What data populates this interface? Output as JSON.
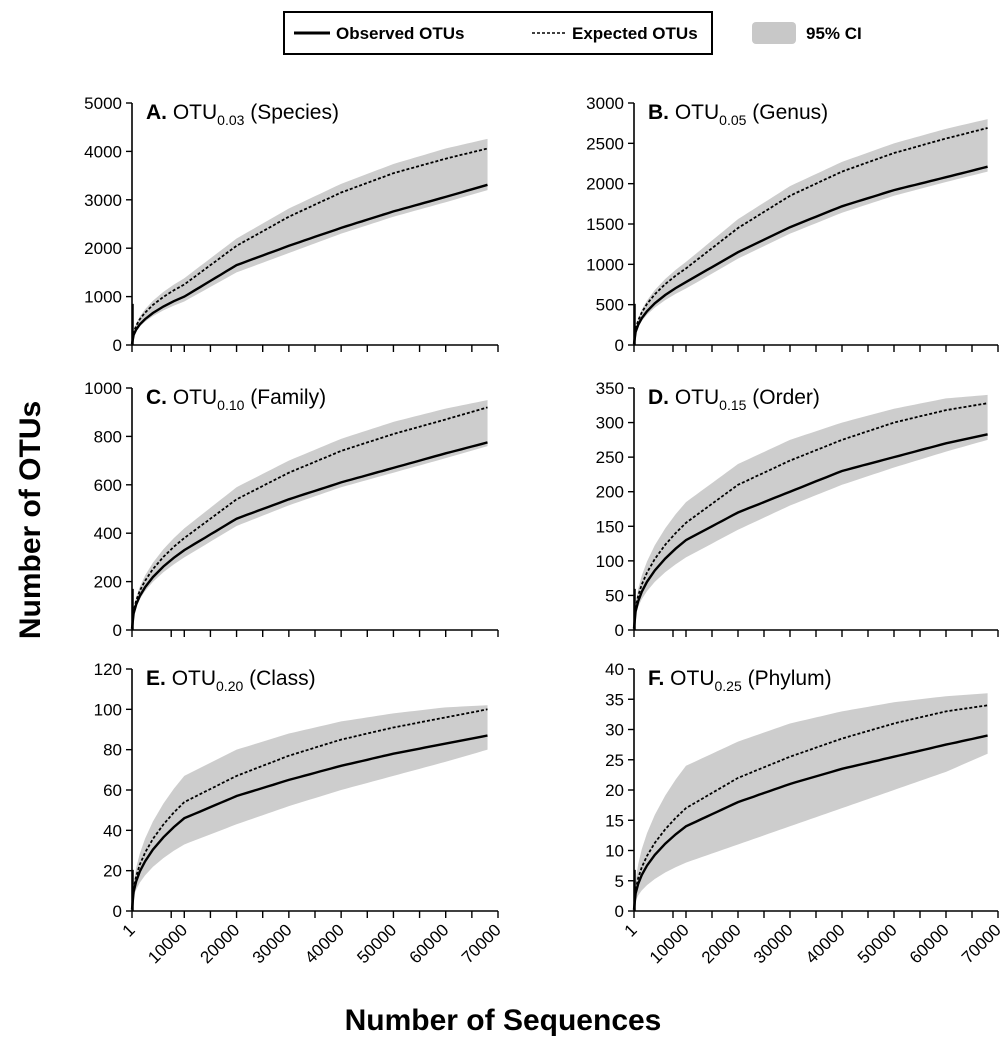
{
  "legend": {
    "observed": "Observed OTUs",
    "expected": "Expected OTUs",
    "ci": "95% CI",
    "placement": "top-center"
  },
  "axis_titles": {
    "x": "Number of Sequences",
    "y": "Number of OTUs"
  },
  "colors": {
    "observed": "#000000",
    "expected": "#000000",
    "ci": "#c8c8c8"
  },
  "chart_data": [
    {
      "type": "line",
      "letter": "A.",
      "label_main": "OTU",
      "label_sub": "0.03",
      "label_rank": "(Species)",
      "x": [
        1,
        10000,
        20000,
        30000,
        40000,
        50000,
        60000,
        68000
      ],
      "ylim": [
        0,
        5000
      ],
      "yticks": [
        0,
        1000,
        2000,
        3000,
        4000,
        5000
      ],
      "xlim": [
        1,
        70000
      ],
      "xticks": [
        "1",
        "10000",
        "20000",
        "30000",
        "40000",
        "50000",
        "60000",
        "70000"
      ],
      "series": [
        {
          "role": "observed",
          "values": [
            0,
            1000,
            1650,
            2050,
            2420,
            2760,
            3060,
            3310
          ]
        },
        {
          "role": "expected",
          "values": [
            0,
            1250,
            2050,
            2650,
            3150,
            3550,
            3850,
            4060
          ]
        }
      ],
      "ci": {
        "lower": [
          0,
          900,
          1500,
          1900,
          2300,
          2650,
          2950,
          3200
        ],
        "upper": [
          0,
          1380,
          2200,
          2820,
          3330,
          3740,
          4060,
          4260
        ]
      }
    },
    {
      "type": "line",
      "letter": "B.",
      "label_main": "OTU",
      "label_sub": "0.05",
      "label_rank": "(Genus)",
      "x": [
        1,
        10000,
        20000,
        30000,
        40000,
        50000,
        60000,
        68000
      ],
      "ylim": [
        0,
        3000
      ],
      "yticks": [
        0,
        500,
        1000,
        1500,
        2000,
        2500,
        3000
      ],
      "xlim": [
        1,
        70000
      ],
      "xticks": [
        "1",
        "10000",
        "20000",
        "30000",
        "40000",
        "50000",
        "60000",
        "70000"
      ],
      "series": [
        {
          "role": "observed",
          "values": [
            0,
            780,
            1150,
            1460,
            1720,
            1920,
            2080,
            2210
          ]
        },
        {
          "role": "expected",
          "values": [
            0,
            950,
            1450,
            1850,
            2150,
            2380,
            2560,
            2690
          ]
        }
      ],
      "ci": {
        "lower": [
          0,
          700,
          1070,
          1380,
          1640,
          1850,
          2020,
          2150
        ],
        "upper": [
          0,
          1030,
          1560,
          1970,
          2270,
          2500,
          2680,
          2800
        ]
      }
    },
    {
      "type": "line",
      "letter": "C.",
      "label_main": "OTU",
      "label_sub": "0.10",
      "label_rank": "(Family)",
      "x": [
        1,
        10000,
        20000,
        30000,
        40000,
        50000,
        60000,
        68000
      ],
      "ylim": [
        0,
        1000
      ],
      "yticks": [
        0,
        200,
        400,
        600,
        800,
        1000
      ],
      "xlim": [
        1,
        70000
      ],
      "xticks": [
        "1",
        "10000",
        "20000",
        "30000",
        "40000",
        "50000",
        "60000",
        "70000"
      ],
      "series": [
        {
          "role": "observed",
          "values": [
            0,
            330,
            460,
            540,
            610,
            670,
            730,
            775
          ]
        },
        {
          "role": "expected",
          "values": [
            0,
            380,
            540,
            650,
            740,
            810,
            870,
            920
          ]
        }
      ],
      "ci": {
        "lower": [
          0,
          300,
          430,
          515,
          590,
          650,
          710,
          760
        ],
        "upper": [
          0,
          420,
          590,
          700,
          790,
          860,
          915,
          950
        ]
      }
    },
    {
      "type": "line",
      "letter": "D.",
      "label_main": "OTU",
      "label_sub": "0.15",
      "label_rank": "(Order)",
      "x": [
        1,
        10000,
        20000,
        30000,
        40000,
        50000,
        60000,
        68000
      ],
      "ylim": [
        0,
        350
      ],
      "yticks": [
        0,
        50,
        100,
        150,
        200,
        250,
        300,
        350
      ],
      "xlim": [
        1,
        70000
      ],
      "xticks": [
        "1",
        "10000",
        "20000",
        "30000",
        "40000",
        "50000",
        "60000",
        "70000"
      ],
      "series": [
        {
          "role": "observed",
          "values": [
            0,
            130,
            170,
            200,
            230,
            250,
            270,
            283
          ]
        },
        {
          "role": "expected",
          "values": [
            0,
            155,
            210,
            245,
            275,
            300,
            318,
            328
          ]
        }
      ],
      "ci": {
        "lower": [
          0,
          105,
          145,
          180,
          210,
          235,
          258,
          275
        ],
        "upper": [
          0,
          185,
          240,
          275,
          300,
          320,
          335,
          340
        ]
      }
    },
    {
      "type": "line",
      "letter": "E.",
      "label_main": "OTU",
      "label_sub": "0.20",
      "label_rank": "(Class)",
      "x": [
        1,
        10000,
        20000,
        30000,
        40000,
        50000,
        60000,
        68000
      ],
      "ylim": [
        0,
        120
      ],
      "yticks": [
        0,
        20,
        40,
        60,
        80,
        100,
        120
      ],
      "xlim": [
        1,
        70000
      ],
      "xticks": [
        "1",
        "10000",
        "20000",
        "30000",
        "40000",
        "50000",
        "60000",
        "70000"
      ],
      "series": [
        {
          "role": "observed",
          "values": [
            0,
            46,
            57,
            65,
            72,
            78,
            83,
            87
          ]
        },
        {
          "role": "expected",
          "values": [
            0,
            54,
            67,
            77,
            85,
            91,
            96,
            100
          ]
        }
      ],
      "ci": {
        "lower": [
          0,
          33,
          43,
          52,
          60,
          67,
          74,
          80
        ],
        "upper": [
          0,
          67,
          80,
          88,
          94,
          98,
          101,
          102
        ]
      }
    },
    {
      "type": "line",
      "letter": "F.",
      "label_main": "OTU",
      "label_sub": "0.25",
      "label_rank": "(Phylum)",
      "x": [
        1,
        10000,
        20000,
        30000,
        40000,
        50000,
        60000,
        68000
      ],
      "ylim": [
        0,
        40
      ],
      "yticks": [
        0,
        5,
        10,
        15,
        20,
        25,
        30,
        35,
        40
      ],
      "xlim": [
        1,
        70000
      ],
      "xticks": [
        "1",
        "10000",
        "20000",
        "30000",
        "40000",
        "50000",
        "60000",
        "70000"
      ],
      "series": [
        {
          "role": "observed",
          "values": [
            0,
            14,
            18,
            21,
            23.5,
            25.5,
            27.5,
            29
          ]
        },
        {
          "role": "expected",
          "values": [
            0,
            17,
            22,
            25.5,
            28.5,
            31,
            33,
            34
          ]
        }
      ],
      "ci": {
        "lower": [
          0,
          8,
          11,
          14,
          17,
          20,
          23,
          26
        ],
        "upper": [
          0,
          24,
          28,
          31,
          33,
          34.5,
          35.5,
          36
        ]
      }
    }
  ]
}
